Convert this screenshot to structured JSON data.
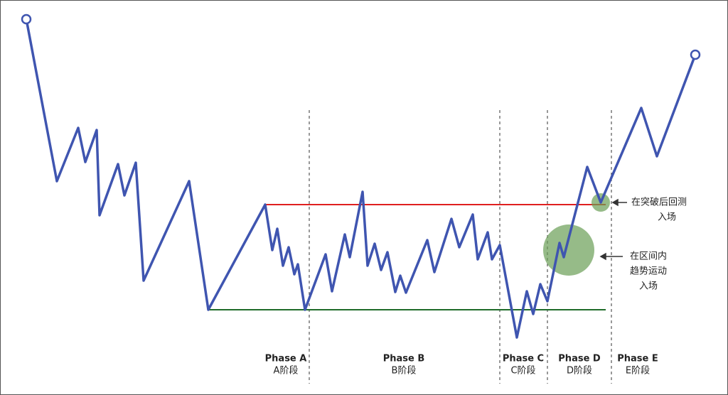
{
  "phases": [
    {
      "name": "Phase A",
      "label": "A阶段"
    },
    {
      "name": "Phase B",
      "label": "B阶段"
    },
    {
      "name": "Phase C",
      "label": "C阶段"
    },
    {
      "name": "Phase D",
      "label": "D阶段"
    },
    {
      "name": "Phase E",
      "label": "E阶段"
    }
  ],
  "annotations": [
    {
      "lines": [
        "在突破后回测",
        "入场"
      ]
    },
    {
      "lines": [
        "在区间内",
        "趋势运动",
        "入场"
      ]
    }
  ]
}
